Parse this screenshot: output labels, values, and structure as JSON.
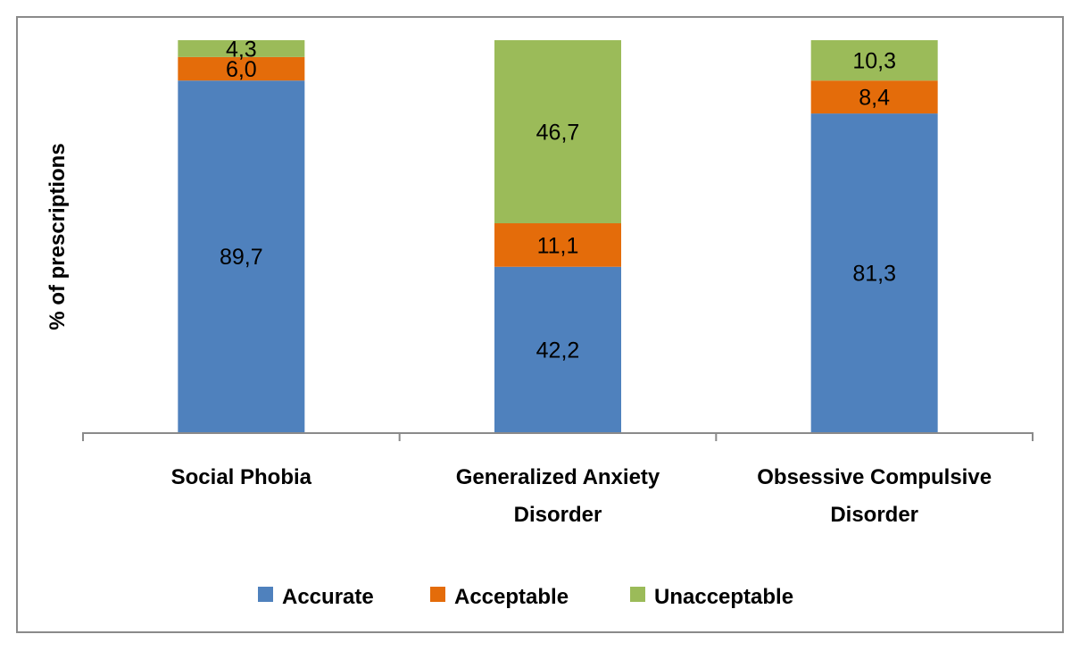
{
  "chart_data": {
    "type": "bar",
    "stacked": true,
    "title": "",
    "xlabel": "",
    "ylabel": "% of prescriptions",
    "ylim": [
      0,
      100
    ],
    "grid": false,
    "legend_position": "bottom",
    "categories": [
      [
        "Social Phobia"
      ],
      [
        "Generalized Anxiety",
        "Disorder"
      ],
      [
        "Obsessive Compulsive",
        "Disorder"
      ]
    ],
    "series": [
      {
        "name": "Accurate",
        "color": "#4F81BD",
        "values": [
          89.7,
          42.2,
          81.3
        ],
        "labels": [
          "89,7",
          "42,2",
          "81,3"
        ]
      },
      {
        "name": "Acceptable",
        "color": "#E46C0A",
        "values": [
          6.0,
          11.1,
          8.4
        ],
        "labels": [
          "6,0",
          "11,1",
          "8,4"
        ]
      },
      {
        "name": "Unacceptable",
        "color": "#9BBB59",
        "values": [
          4.3,
          46.7,
          10.3
        ],
        "labels": [
          "4,3",
          "46,7",
          "10,3"
        ]
      }
    ]
  }
}
